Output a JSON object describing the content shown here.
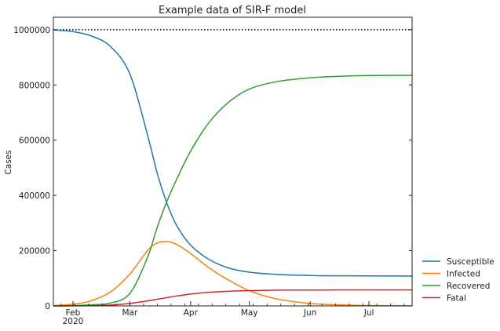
{
  "chart_data": {
    "type": "line",
    "title": "Example data of SIR-F model",
    "xlabel": "",
    "ylabel": "Cases",
    "x_axis": {
      "type": "date",
      "range": [
        "2020-01-22",
        "2020-07-23"
      ],
      "ticks": [
        {
          "date": "2020-02-01",
          "label": "Feb",
          "sublabel": "2020"
        },
        {
          "date": "2020-03-01",
          "label": "Mar"
        },
        {
          "date": "2020-04-01",
          "label": "Apr"
        },
        {
          "date": "2020-05-01",
          "label": "May"
        },
        {
          "date": "2020-06-01",
          "label": "Jun"
        },
        {
          "date": "2020-07-01",
          "label": "Jul"
        }
      ]
    },
    "ylim": [
      0,
      1045000
    ],
    "yticks": [
      0,
      200000,
      400000,
      600000,
      800000,
      1000000
    ],
    "ytick_labels": [
      "0",
      "200000",
      "400000",
      "600000",
      "800000",
      "1000000"
    ],
    "grid": false,
    "legend_position": "lower-right outside",
    "reference_line": {
      "y": 1000000,
      "style": "dotted",
      "color": "#000000"
    },
    "x": [
      "2020-01-22",
      "2020-02-01",
      "2020-02-10",
      "2020-02-20",
      "2020-03-01",
      "2020-03-10",
      "2020-03-15",
      "2020-03-20",
      "2020-03-25",
      "2020-04-01",
      "2020-04-10",
      "2020-04-20",
      "2020-05-01",
      "2020-05-15",
      "2020-06-01",
      "2020-06-15",
      "2020-07-01",
      "2020-07-23"
    ],
    "series": [
      {
        "name": "Susceptible",
        "color": "#1f77b4",
        "values": [
          999000,
          993000,
          978000,
          940000,
          840000,
          620000,
          480000,
          370000,
          290000,
          220000,
          170000,
          138000,
          122000,
          114000,
          110000,
          109000,
          108500,
          108000
        ]
      },
      {
        "name": "Infected",
        "color": "#ff7f0e",
        "values": [
          1000,
          6000,
          18000,
          50000,
          115000,
          200000,
          228000,
          233000,
          222000,
          190000,
          140000,
          95000,
          55000,
          25000,
          9000,
          4000,
          1500,
          400
        ]
      },
      {
        "name": "Recovered",
        "color": "#2ca02c",
        "values": [
          0,
          1000,
          4000,
          10000,
          45000,
          175000,
          285000,
          380000,
          460000,
          560000,
          660000,
          735000,
          785000,
          812000,
          826000,
          831000,
          834000,
          835000
        ]
      },
      {
        "name": "Fatal",
        "color": "#d62728",
        "values": [
          0,
          300,
          1000,
          3000,
          9000,
          18000,
          24000,
          30000,
          36000,
          43000,
          49000,
          53000,
          55500,
          57000,
          57500,
          57700,
          57800,
          57800
        ]
      }
    ]
  }
}
